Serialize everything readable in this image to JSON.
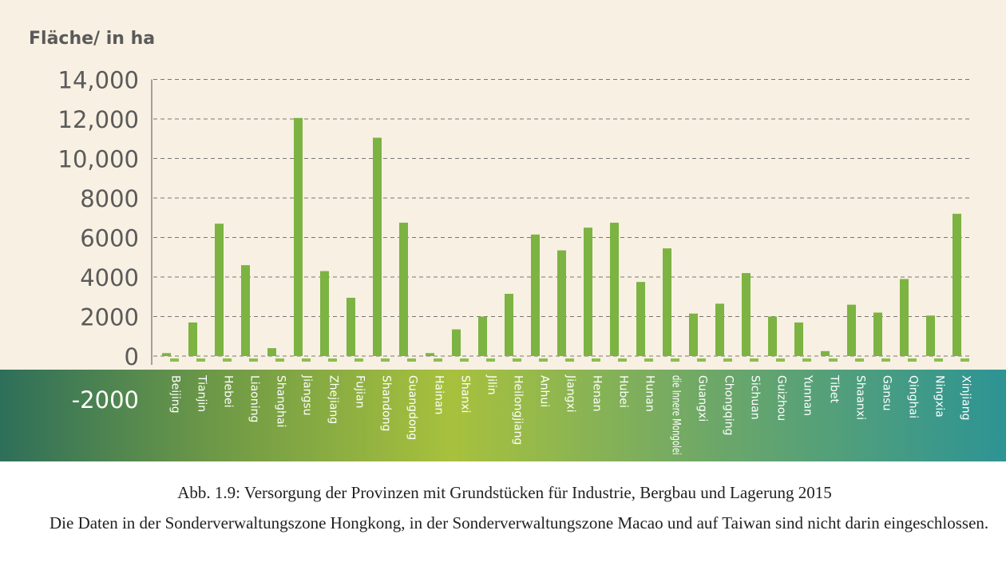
{
  "chart_data": {
    "type": "bar",
    "ylabel": "Fläche/ in ha",
    "ylim": [
      -2000,
      14000
    ],
    "yticks": [
      {
        "value": 14000,
        "label": "14,000"
      },
      {
        "value": 12000,
        "label": "12,000"
      },
      {
        "value": 10000,
        "label": "10,000"
      },
      {
        "value": 8000,
        "label": "8000"
      },
      {
        "value": 6000,
        "label": "6000"
      },
      {
        "value": 4000,
        "label": "4000"
      },
      {
        "value": 2000,
        "label": "2000"
      },
      {
        "value": 0,
        "label": "0"
      },
      {
        "value": -2000,
        "label": "-2000"
      }
    ],
    "grid": true,
    "bar_color": "#7cb342",
    "categories": [
      "Beijing",
      "Tianjin",
      "Hebei",
      "Liaoning",
      "Shanghai",
      "Jiangsu",
      "Zhejiang",
      "Fujian",
      "Shandong",
      "Guangdong",
      "Hainan",
      "Shanxi",
      "Jilin",
      "Heilongjiang",
      "Anhui",
      "Jiangxi",
      "Henan",
      "Hubei",
      "Hunan",
      "die Innere Mongolei",
      "Guangxi",
      "Chongqing",
      "Sichuan",
      "Guizhou",
      "Yunnan",
      "Tibet",
      "Shaanxi",
      "Gansu",
      "Qinghai",
      "Ningxia",
      "Xinjiang"
    ],
    "values": [
      150,
      1700,
      6700,
      4600,
      400,
      12050,
      4300,
      2950,
      11050,
      6750,
      150,
      1350,
      2000,
      3150,
      6150,
      5350,
      6500,
      6750,
      3750,
      5450,
      2150,
      2650,
      4200,
      2000,
      1700,
      250,
      2600,
      2200,
      3900,
      2050,
      7200
    ]
  },
  "caption": {
    "title": "Abb. 1.9: Versorgung der Provinzen mit Grundstücken für Industrie, Bergbau und Lagerung 2015",
    "note": "Die Daten in der Sonderverwaltungszone Hongkong, in der Sonderverwaltungszone Macao und auf Taiwan sind nicht darin eingeschlossen."
  }
}
